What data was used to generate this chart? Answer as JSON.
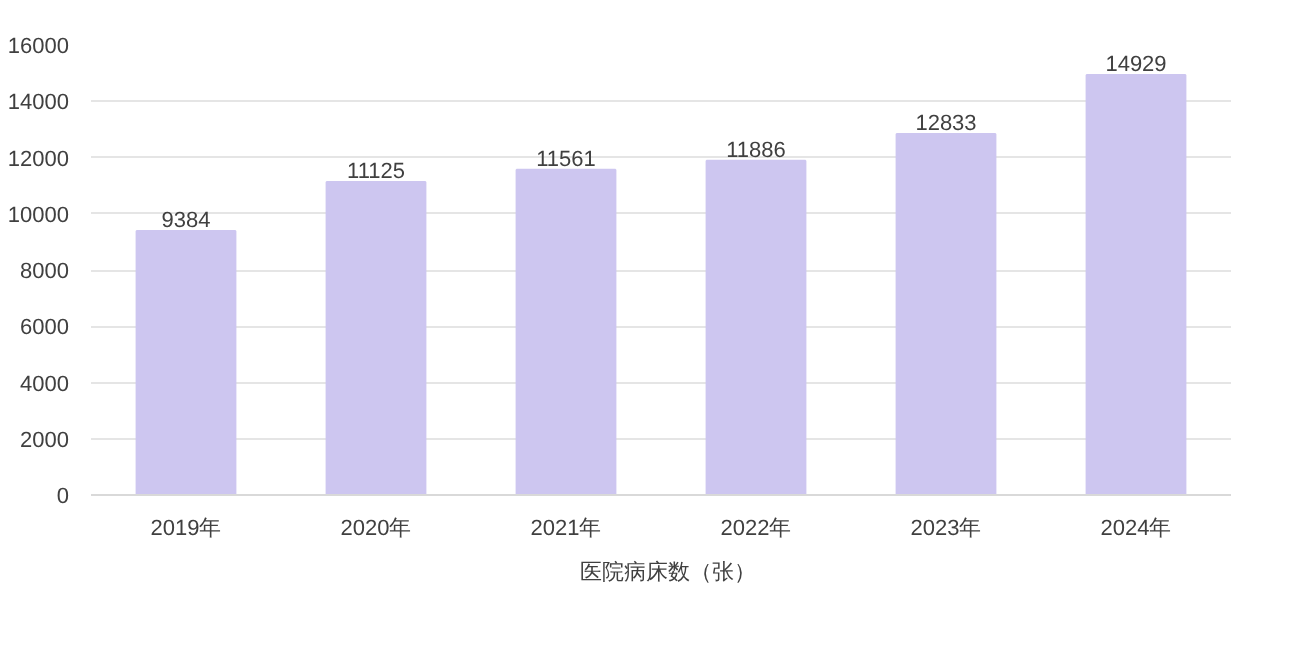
{
  "chart_data": {
    "type": "bar",
    "categories": [
      "2019年",
      "2020年",
      "2021年",
      "2022年",
      "2023年",
      "2024年"
    ],
    "series": [
      {
        "name": "医院病床数（张）",
        "color": "#cdc6f0",
        "values": [
          9384,
          11125,
          11561,
          11886,
          12833,
          14929
        ]
      }
    ],
    "ylim": [
      0,
      16000
    ],
    "yticks": [
      0,
      2000,
      4000,
      6000,
      8000,
      10000,
      12000,
      14000,
      16000
    ],
    "grid": "y",
    "legend": "bottom",
    "data_labels": true
  }
}
